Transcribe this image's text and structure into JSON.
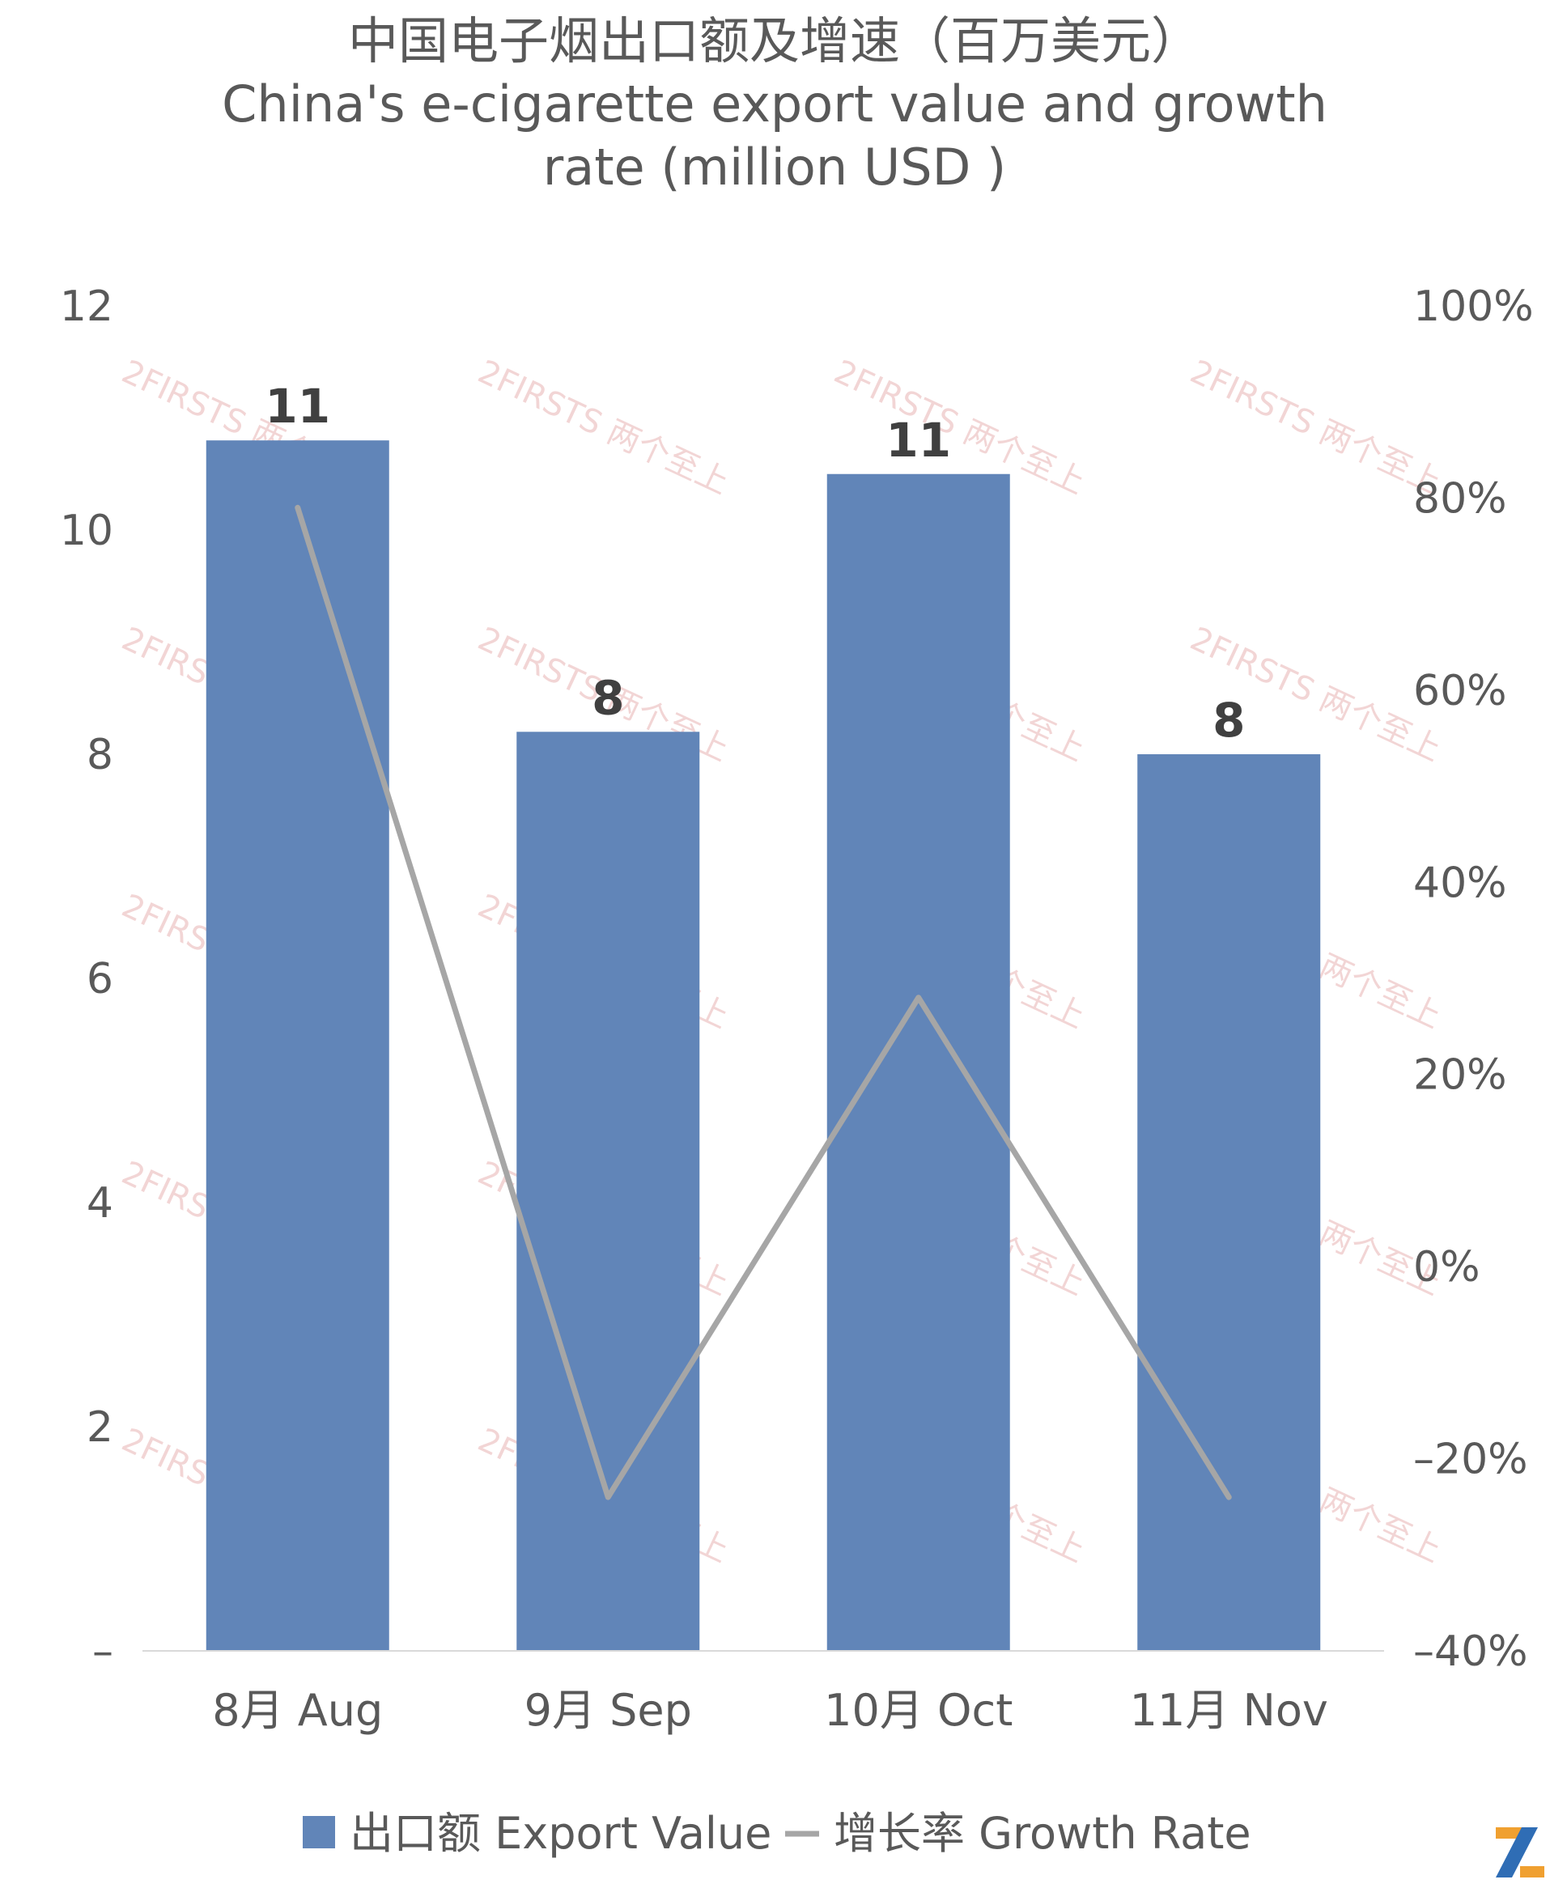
{
  "chart_data": {
    "type": "bar",
    "title_lines": [
      "中国电子烟出口额及增速（百万美元）",
      "China's e-cigarette export value and growth",
      "rate (million USD )"
    ],
    "categories": [
      "8月 Aug",
      "9月 Sep",
      "10月 Oct",
      "11月 Nov"
    ],
    "series": [
      {
        "name": "出口额 Export Value",
        "type": "bar",
        "axis": "left",
        "values": [
          10.8,
          8.2,
          10.5,
          8.0
        ],
        "data_labels": [
          "11",
          "8",
          "11",
          "8"
        ],
        "color": "#6185b8"
      },
      {
        "name": "增长率 Growth Rate",
        "type": "line",
        "axis": "right",
        "values": [
          79,
          -24,
          28,
          -24
        ],
        "color": "#a6a6a6"
      }
    ],
    "y_left": {
      "min": 0,
      "max": 12,
      "ticks": [
        0,
        2,
        4,
        6,
        8,
        10,
        12
      ],
      "tick_labels": [
        "–",
        "2",
        "4",
        "6",
        "8",
        "10",
        "12"
      ]
    },
    "y_right": {
      "min": -40,
      "max": 100,
      "ticks": [
        -40,
        -20,
        0,
        20,
        40,
        60,
        80,
        100
      ],
      "tick_labels": [
        "–40%",
        "–20%",
        "0%",
        "20%",
        "40%",
        "60%",
        "80%",
        "100%"
      ]
    },
    "grid": false,
    "legend_position": "bottom"
  },
  "watermark": {
    "text": "2FIRSTS 两个至上"
  },
  "logo": {
    "icon": "2firsts-logo-icon"
  }
}
